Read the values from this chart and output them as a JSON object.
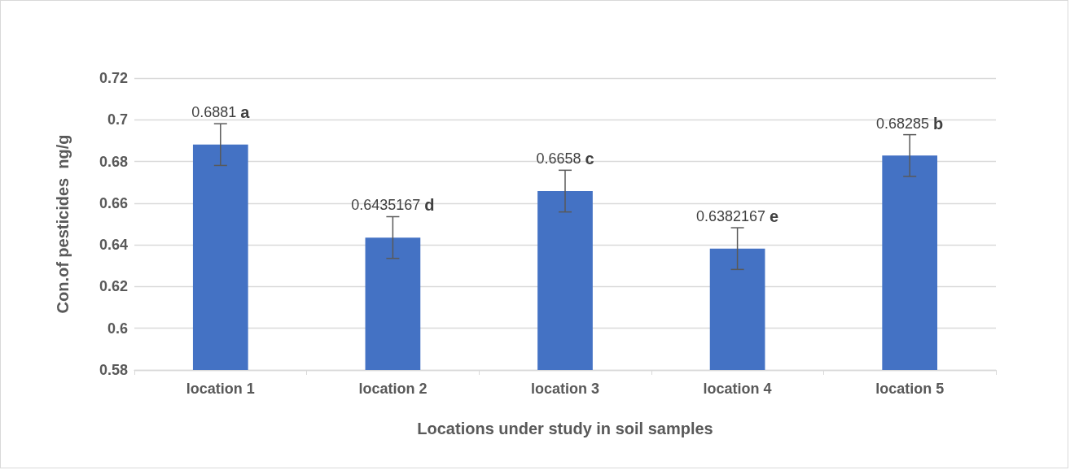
{
  "chart_data": {
    "type": "bar",
    "xlabel": "Locations under study in soil samples",
    "ylabel": "Con.of pesticides  ng/g",
    "categories": [
      "location 1",
      "location 2",
      "location 3",
      "location 4",
      "location 5"
    ],
    "values": [
      0.6881,
      0.6435167,
      0.6658,
      0.6382167,
      0.68285
    ],
    "errors": [
      0.01,
      0.01,
      0.01,
      0.01,
      0.01
    ],
    "value_labels": [
      "0.6881 a",
      "0.6435167 d",
      "0.6658 c",
      "0.6382167 e",
      "0.68285 b"
    ],
    "color": "#4472c4",
    "ylim": [
      0.58,
      0.72
    ],
    "yticks": [
      0.58,
      0.6,
      0.62,
      0.64,
      0.66,
      0.68,
      0.7,
      0.72
    ],
    "grid": "y"
  }
}
